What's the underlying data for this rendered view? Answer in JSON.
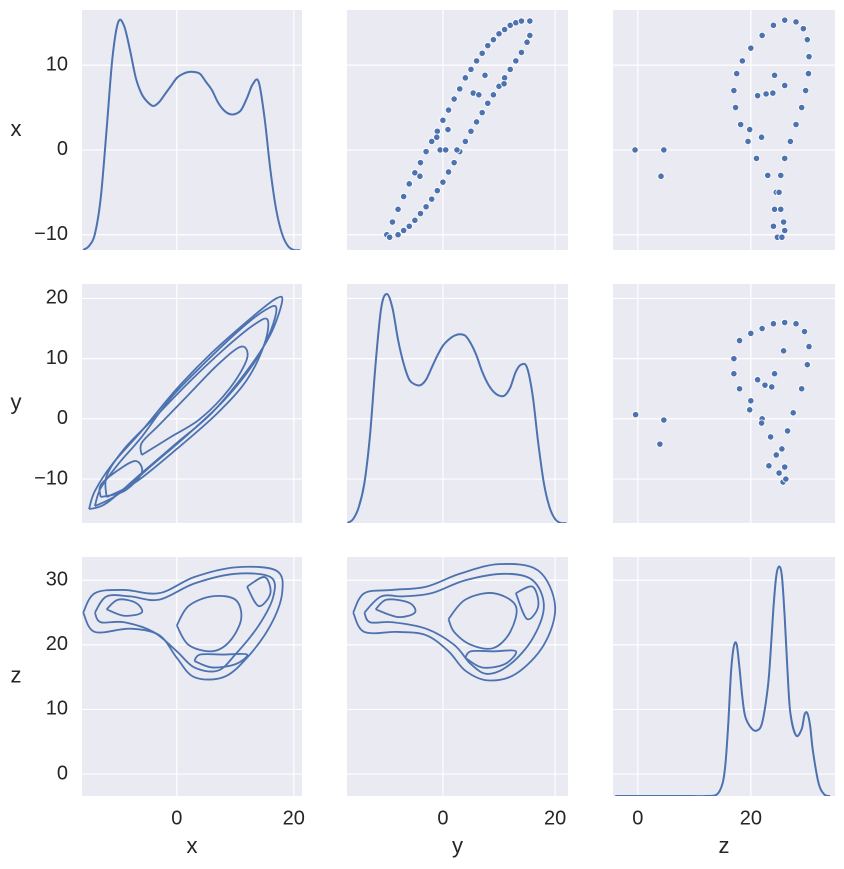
{
  "chart_data": [
    {
      "type": "kde",
      "ylabel": "x",
      "xlim": [
        -16.2,
        21.4
      ],
      "ylim": [
        -11.8,
        16.5
      ],
      "xticks": [
        0,
        20
      ],
      "yticks": [
        {
          "value": -10,
          "label": "−10"
        },
        0,
        10
      ],
      "y2lim": [
        0,
        0.06
      ],
      "grid": true,
      "series": [
        {
          "color": "#4c72b0",
          "axis": "y2",
          "x": [
            -16,
            -15,
            -14,
            -13,
            -12,
            -11,
            -10,
            -9,
            -8,
            -7,
            -6,
            -5,
            -4,
            -3,
            -2,
            -1,
            0,
            1,
            2,
            3,
            4,
            5,
            6,
            7,
            8,
            9,
            10,
            11,
            12,
            13,
            14,
            15,
            16,
            17,
            18,
            19,
            20,
            21
          ],
          "values": [
            0,
            0.001,
            0.004,
            0.013,
            0.03,
            0.048,
            0.057,
            0.056,
            0.05,
            0.043,
            0.039,
            0.037,
            0.036,
            0.037,
            0.039,
            0.041,
            0.043,
            0.044,
            0.0445,
            0.0445,
            0.044,
            0.042,
            0.04,
            0.037,
            0.035,
            0.034,
            0.034,
            0.035,
            0.038,
            0.0415,
            0.042,
            0.033,
            0.02,
            0.01,
            0.004,
            0.001,
            0,
            0
          ]
        }
      ]
    },
    {
      "type": "scatter",
      "xlim": [
        -17.1,
        22.3
      ],
      "ylim": [
        -11.8,
        16.5
      ],
      "xticks": [
        0,
        20
      ],
      "yticks": [
        -10,
        0,
        10
      ],
      "grid": true,
      "series": [
        {
          "color": "#4c72b0",
          "x": [
            -10,
            -9,
            -8,
            -7,
            -6,
            -5,
            -4,
            -3,
            -2,
            -1,
            0,
            1,
            2,
            3,
            4,
            5,
            6,
            7,
            8,
            9,
            10,
            11,
            12,
            13,
            14,
            15.5,
            15.5,
            15,
            14,
            13,
            12,
            11,
            10,
            9,
            8,
            7,
            6,
            5,
            4,
            3,
            2,
            1,
            0,
            -1,
            -2,
            -3,
            -4,
            -5,
            -6,
            -7,
            -8,
            -9.5,
            7.5,
            5.4,
            6.4,
            10.9,
            -1.1,
            0.9,
            -0.5,
            0.5,
            -4.1,
            2.5
          ],
          "values": [
            -10,
            -8.5,
            -7,
            -5.5,
            -4,
            -2.7,
            -1.5,
            -0.2,
            1,
            2.2,
            3.5,
            4.7,
            6,
            7.2,
            8.5,
            9.5,
            10.5,
            11.4,
            12.3,
            13,
            13.7,
            14.2,
            14.7,
            15,
            15.2,
            15.2,
            13.5,
            12.7,
            11.5,
            10.5,
            9.5,
            8.5,
            7.5,
            6.5,
            5.5,
            4.4,
            3.3,
            2.2,
            1,
            -0.2,
            -1.5,
            -2.6,
            -3.8,
            -4.8,
            -5.8,
            -6.7,
            -7.5,
            -8.3,
            -9,
            -9.5,
            -10,
            -10.3,
            8.8,
            6.7,
            6.5,
            7.8,
            1.5,
            2.4,
            0,
            0,
            -3.1,
            0
          ]
        }
      ]
    },
    {
      "type": "scatter",
      "xlim": [
        -4.4,
        34.9
      ],
      "ylim": [
        -11.8,
        16.5
      ],
      "xticks": [
        0,
        20
      ],
      "yticks": [
        -10,
        0,
        10
      ],
      "grid": true,
      "series": [
        {
          "color": "#4c72b0",
          "x": [
            24.7,
            24,
            24.2,
            24.5,
            23,
            21,
            19.5,
            18.2,
            17.3,
            17,
            17.5,
            18.5,
            20,
            22,
            24,
            26,
            28,
            29.3,
            30,
            30.3,
            30.2,
            29.7,
            29,
            28,
            27,
            26,
            25.3,
            25,
            25.3,
            25.8,
            26,
            25.5,
            -0.5,
            4.6,
            4.1,
            21.2,
            22.7,
            23.9,
            24.2,
            26,
            21.9,
            19.8
          ],
          "values": [
            -10.3,
            -9,
            -7,
            -5,
            -3,
            -1,
            1,
            3,
            5,
            7,
            9,
            10.5,
            12,
            13.5,
            14.7,
            15.3,
            15.1,
            14.3,
            13,
            11,
            9,
            7,
            5,
            3,
            1,
            -1,
            -3,
            -5,
            -7,
            -8.5,
            -9.5,
            -10.3,
            0,
            0,
            -3.1,
            6.4,
            6.6,
            6.7,
            8.8,
            7.6,
            1.5,
            2.4
          ]
        }
      ]
    },
    {
      "type": "contour",
      "ylabel": "y",
      "xlim": [
        -16.2,
        21.4
      ],
      "ylim": [
        -17.3,
        22.4
      ],
      "xticks": [
        0,
        20
      ],
      "yticks": [
        {
          "value": -10,
          "label": "−10"
        },
        0,
        10,
        20
      ],
      "grid": true,
      "color": "#4c72b0",
      "contours": [
        {
          "x": [
            -15,
            -12,
            -6,
            0,
            6,
            12,
            16,
            18,
            17,
            13,
            6,
            0,
            -6,
            -11,
            -14,
            -15
          ],
          "y": [
            -15,
            -14,
            -9,
            -4,
            1,
            8,
            14,
            19.5,
            20,
            17,
            11,
            5,
            -2,
            -7.5,
            -12,
            -15
          ]
        },
        {
          "x": [
            -14,
            -10,
            -4,
            2,
            8,
            13,
            16,
            17,
            15,
            11,
            5,
            -1,
            -6,
            -10,
            -13,
            -14
          ],
          "y": [
            -14.5,
            -12.5,
            -7.5,
            -2.5,
            3,
            9,
            14.5,
            18.5,
            18,
            15,
            9.5,
            3.5,
            -3,
            -7.5,
            -11.5,
            -14.5
          ]
        },
        {
          "x": [
            -12,
            -7,
            0,
            7,
            12,
            15,
            15.5,
            13,
            8,
            2,
            -4,
            -9,
            -12,
            -12
          ],
          "y": [
            -13,
            -10.5,
            -5,
            1,
            6.5,
            12.5,
            16.5,
            15.5,
            11.5,
            6,
            0,
            -5,
            -9.5,
            -13
          ]
        },
        {
          "x": [
            -6,
            -1,
            4,
            9,
            12,
            11,
            7,
            2,
            -3,
            -6,
            -6
          ],
          "y": [
            -6,
            -3,
            0,
            5,
            10,
            12,
            9,
            4,
            -1,
            -4,
            -6
          ]
        },
        {
          "x": [
            -13,
            -9,
            -6,
            -7,
            -10,
            -13,
            -13
          ],
          "y": [
            -13,
            -12,
            -9,
            -7,
            -8.5,
            -11,
            -13
          ]
        }
      ]
    },
    {
      "type": "kde",
      "xlim": [
        -17.1,
        22.3
      ],
      "ylim": [
        -17.3,
        22.4
      ],
      "xticks": [
        0,
        20
      ],
      "yticks": [
        -10,
        0,
        10,
        20
      ],
      "y2lim": [
        0,
        0.06
      ],
      "grid": true,
      "series": [
        {
          "color": "#4c72b0",
          "axis": "y2",
          "x": [
            -17,
            -16,
            -15,
            -14,
            -13,
            -12,
            -11,
            -10,
            -9,
            -8,
            -7,
            -6,
            -5,
            -4,
            -3,
            -2,
            -1,
            0,
            1,
            2,
            3,
            4,
            5,
            6,
            7,
            8,
            9,
            10,
            11,
            12,
            13,
            14,
            15,
            16,
            17,
            18,
            19,
            20,
            21,
            22
          ],
          "values": [
            0,
            0.001,
            0.004,
            0.01,
            0.022,
            0.04,
            0.054,
            0.0575,
            0.054,
            0.046,
            0.04,
            0.036,
            0.0348,
            0.0346,
            0.036,
            0.039,
            0.042,
            0.0445,
            0.046,
            0.047,
            0.0474,
            0.047,
            0.045,
            0.042,
            0.038,
            0.035,
            0.033,
            0.032,
            0.032,
            0.034,
            0.038,
            0.0398,
            0.039,
            0.032,
            0.02,
            0.01,
            0.004,
            0.001,
            0,
            0
          ]
        }
      ]
    },
    {
      "type": "scatter",
      "xlim": [
        -4.4,
        34.9
      ],
      "ylim": [
        -17.3,
        22.4
      ],
      "xticks": [
        0,
        20
      ],
      "yticks": [
        -10,
        0,
        10,
        20
      ],
      "grid": true,
      "series": [
        {
          "color": "#4c72b0",
          "x": [
            25.7,
            25,
            24.5,
            23.5,
            22,
            20,
            18,
            17,
            17,
            18,
            20,
            22,
            24,
            26,
            28,
            29.5,
            30.3,
            30,
            29,
            27.5,
            26.5,
            25.5,
            26,
            26.2,
            -0.4,
            4.6,
            3.9,
            21.2,
            22.5,
            23.7,
            24.2,
            25.8,
            19.8,
            21.9,
            23.2
          ],
          "values": [
            -10.5,
            -9,
            -6,
            -3,
            0,
            3,
            5,
            7.5,
            10,
            13,
            14.2,
            15,
            15.8,
            16,
            15.8,
            14.5,
            12,
            9,
            5,
            1,
            -2,
            -5,
            -8,
            -10,
            0.7,
            -0.2,
            -4.2,
            6.5,
            5.6,
            5.3,
            7.5,
            11.3,
            1.5,
            -0.7,
            -7.8
          ]
        }
      ]
    },
    {
      "type": "contour",
      "xlabel": "x",
      "ylabel": "z",
      "xlim": [
        -16.2,
        21.4
      ],
      "ylim": [
        -3.4,
        33.6
      ],
      "xticks": [
        0,
        20
      ],
      "yticks": [
        0,
        10,
        20,
        30
      ],
      "grid": true,
      "color": "#4c72b0",
      "contours": [
        {
          "x": [
            -16,
            -14,
            -9,
            -3,
            3,
            10,
            17,
            18,
            16,
            12,
            8,
            3,
            0,
            -3,
            -8,
            -14,
            -16
          ],
          "y": [
            25,
            28,
            28.5,
            28,
            30.5,
            32,
            31.5,
            28,
            23,
            18,
            15,
            15,
            18,
            21.5,
            22.5,
            22,
            25
          ]
        },
        {
          "x": [
            -14,
            -12,
            -8,
            -3,
            3,
            10,
            16,
            16.5,
            14,
            10,
            7,
            3,
            0,
            -4,
            -9,
            -13,
            -14
          ],
          "y": [
            25,
            27.5,
            27.5,
            27,
            29.5,
            31,
            30.5,
            27.5,
            23,
            18.5,
            16,
            16.5,
            19,
            22,
            23.5,
            23.5,
            25
          ]
        },
        {
          "x": [
            0,
            2,
            6,
            10,
            11,
            9,
            6,
            2,
            0
          ],
          "y": [
            23,
            26,
            27.5,
            27,
            24,
            20.5,
            19,
            20,
            23
          ]
        },
        {
          "x": [
            -12,
            -10,
            -7,
            -6,
            -9,
            -12
          ],
          "y": [
            25.5,
            27,
            26.5,
            25,
            24.5,
            25.5
          ]
        },
        {
          "x": [
            3,
            6,
            10,
            12,
            8,
            4,
            3
          ],
          "y": [
            17.5,
            16.5,
            17,
            18.5,
            18.5,
            18.5,
            17.5
          ]
        },
        {
          "x": [
            12,
            15,
            16,
            14,
            12
          ],
          "y": [
            29,
            30.5,
            28,
            26,
            29
          ]
        }
      ]
    },
    {
      "type": "contour",
      "xlabel": "y",
      "xlim": [
        -17.1,
        22.3
      ],
      "ylim": [
        -3.4,
        33.6
      ],
      "xticks": [
        0,
        20
      ],
      "yticks": [
        0,
        10,
        20,
        30
      ],
      "grid": true,
      "color": "#4c72b0",
      "contours": [
        {
          "x": [
            -16,
            -14,
            -9,
            -3,
            3,
            10,
            17,
            20,
            18,
            13,
            8,
            4,
            1,
            -3,
            -8,
            -14,
            -16
          ],
          "y": [
            25,
            28,
            28.5,
            29,
            31,
            32.5,
            31.5,
            26,
            20,
            15.5,
            14.5,
            16,
            19,
            21.5,
            22,
            22,
            25
          ]
        },
        {
          "x": [
            -14,
            -11,
            -7,
            -2,
            4,
            11,
            16,
            18,
            16,
            12,
            8,
            5,
            2,
            -3,
            -9,
            -13,
            -14
          ],
          "y": [
            25,
            27.5,
            27.5,
            28,
            30,
            31,
            30,
            26,
            21,
            17,
            15.5,
            17,
            20,
            22.5,
            23.5,
            23.5,
            25
          ]
        },
        {
          "x": [
            1,
            4,
            9,
            13,
            12,
            9,
            5,
            2,
            1
          ],
          "y": [
            24,
            27,
            28,
            26,
            22,
            19.5,
            20,
            22,
            24
          ]
        },
        {
          "x": [
            -12,
            -10,
            -6,
            -5,
            -8,
            -12
          ],
          "y": [
            25.5,
            27,
            26.5,
            25,
            24.3,
            25.5
          ]
        },
        {
          "x": [
            4,
            7,
            11,
            13,
            9,
            5,
            4
          ],
          "y": [
            18,
            16.5,
            17,
            19,
            19,
            19,
            18
          ]
        },
        {
          "x": [
            13,
            16,
            17,
            15,
            13
          ],
          "y": [
            28,
            29,
            26,
            24,
            28
          ]
        }
      ]
    },
    {
      "type": "kde",
      "xlabel": "z",
      "xlim": [
        -4.4,
        34.9
      ],
      "ylim": [
        -3.4,
        33.6
      ],
      "xticks": [
        0,
        20
      ],
      "yticks": [
        0,
        10,
        20,
        30
      ],
      "y2lim": [
        0,
        0.15
      ],
      "grid": true,
      "series": [
        {
          "color": "#4c72b0",
          "axis": "y2",
          "x": [
            -4,
            0,
            4,
            8,
            12,
            14,
            15,
            15.5,
            16,
            16.5,
            17,
            17.5,
            18,
            18.5,
            19,
            20,
            21,
            22,
            23,
            23.5,
            24,
            24.5,
            25,
            25.5,
            26,
            26.5,
            27,
            28,
            29,
            29.5,
            30,
            30.5,
            31,
            32,
            33,
            34
          ],
          "values": [
            0,
            0,
            0,
            0,
            0,
            0.001,
            0.008,
            0.02,
            0.045,
            0.078,
            0.094,
            0.095,
            0.08,
            0.062,
            0.05,
            0.043,
            0.041,
            0.046,
            0.068,
            0.09,
            0.118,
            0.138,
            0.144,
            0.138,
            0.112,
            0.078,
            0.052,
            0.038,
            0.042,
            0.051,
            0.052,
            0.044,
            0.028,
            0.008,
            0.001,
            0
          ]
        }
      ]
    }
  ]
}
